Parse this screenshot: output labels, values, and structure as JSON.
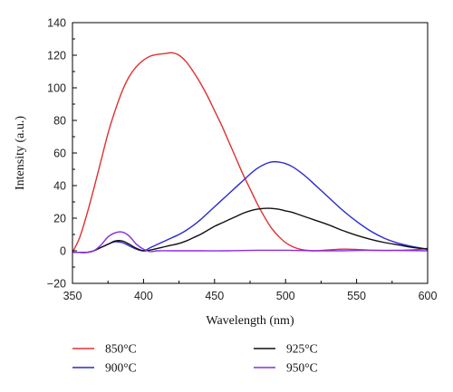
{
  "chart_data": {
    "type": "line",
    "title": "",
    "xlabel": "Wavelength (nm)",
    "ylabel": "Intensity (a.u.)",
    "xlim": [
      350,
      600
    ],
    "ylim": [
      -20,
      140
    ],
    "xticks": [
      350,
      400,
      450,
      500,
      550,
      600
    ],
    "yticks": [
      -20,
      0,
      20,
      40,
      60,
      80,
      100,
      120,
      140
    ],
    "grid": false,
    "legend_position": "bottom",
    "series": [
      {
        "name": "850°C",
        "color": "#e03030",
        "x": [
          350,
          355,
          360,
          365,
          370,
          375,
          380,
          385,
          390,
          395,
          400,
          405,
          410,
          415,
          420,
          425,
          430,
          435,
          440,
          445,
          450,
          455,
          460,
          465,
          470,
          475,
          480,
          485,
          490,
          495,
          500,
          505,
          510,
          515,
          520,
          530,
          540,
          550,
          560,
          570,
          580,
          590,
          600
        ],
        "y": [
          -1,
          8,
          22,
          38,
          55,
          72,
          86,
          98,
          107,
          113,
          117,
          119.5,
          120.5,
          121,
          121.5,
          120,
          116,
          110,
          103,
          95,
          86,
          77,
          67,
          57,
          47,
          38,
          29,
          21,
          14,
          9,
          5,
          2.5,
          1,
          0.3,
          0,
          0.5,
          1,
          0.8,
          0.3,
          0.2,
          0.3,
          0.6,
          1.5
        ]
      },
      {
        "name": "900°C",
        "color": "#2a2ad0",
        "x": [
          350,
          355,
          360,
          365,
          370,
          375,
          380,
          385,
          390,
          395,
          400,
          405,
          410,
          415,
          420,
          425,
          430,
          435,
          440,
          445,
          450,
          455,
          460,
          465,
          470,
          475,
          480,
          485,
          490,
          495,
          500,
          505,
          510,
          515,
          520,
          525,
          530,
          540,
          550,
          560,
          570,
          580,
          590,
          600
        ],
        "y": [
          -1,
          -1,
          -1,
          0,
          2,
          4,
          5.5,
          5,
          3,
          1,
          0,
          2,
          4,
          6,
          8,
          10,
          12.5,
          15.5,
          19,
          23,
          27,
          31,
          35,
          39,
          43,
          47,
          50.5,
          53,
          54.5,
          54.5,
          53.5,
          51.5,
          48.5,
          45,
          41,
          37,
          33,
          25,
          18,
          12,
          7.5,
          4.5,
          2.5,
          1
        ]
      },
      {
        "name": "925°C",
        "color": "#111111",
        "x": [
          350,
          355,
          360,
          365,
          370,
          375,
          380,
          385,
          390,
          395,
          400,
          405,
          410,
          415,
          420,
          425,
          430,
          435,
          440,
          445,
          450,
          455,
          460,
          465,
          470,
          475,
          480,
          485,
          490,
          495,
          500,
          505,
          510,
          515,
          520,
          530,
          540,
          550,
          560,
          570,
          580,
          590,
          600
        ],
        "y": [
          -1,
          -1,
          -1,
          0,
          2,
          4,
          6,
          6,
          4,
          1.5,
          0,
          0.5,
          1.5,
          2.5,
          3.5,
          4.5,
          6,
          8,
          10,
          12.5,
          15,
          17,
          19,
          21,
          23,
          24.5,
          25.5,
          26,
          26,
          25.5,
          24.5,
          23.5,
          22,
          20.5,
          19,
          16,
          12.5,
          9.5,
          7,
          5,
          3.5,
          2,
          1
        ]
      },
      {
        "name": "950°C",
        "color": "#8a2be2",
        "x": [
          350,
          355,
          360,
          365,
          370,
          375,
          380,
          385,
          390,
          395,
          400,
          405,
          410,
          420,
          440,
          460,
          480,
          500,
          520,
          540,
          560,
          580,
          600
        ],
        "y": [
          -1,
          -1,
          -1,
          0,
          3.5,
          8.5,
          11,
          11.5,
          9,
          4,
          1,
          -0.5,
          0,
          0,
          0,
          0,
          0.3,
          0.3,
          0,
          0,
          0.3,
          0.2,
          0
        ]
      }
    ],
    "legend": [
      {
        "label": "850°C",
        "series": 0
      },
      {
        "label": "925°C",
        "series": 2
      },
      {
        "label": "900°C",
        "series": 1
      },
      {
        "label": "950°C",
        "series": 3
      }
    ]
  }
}
